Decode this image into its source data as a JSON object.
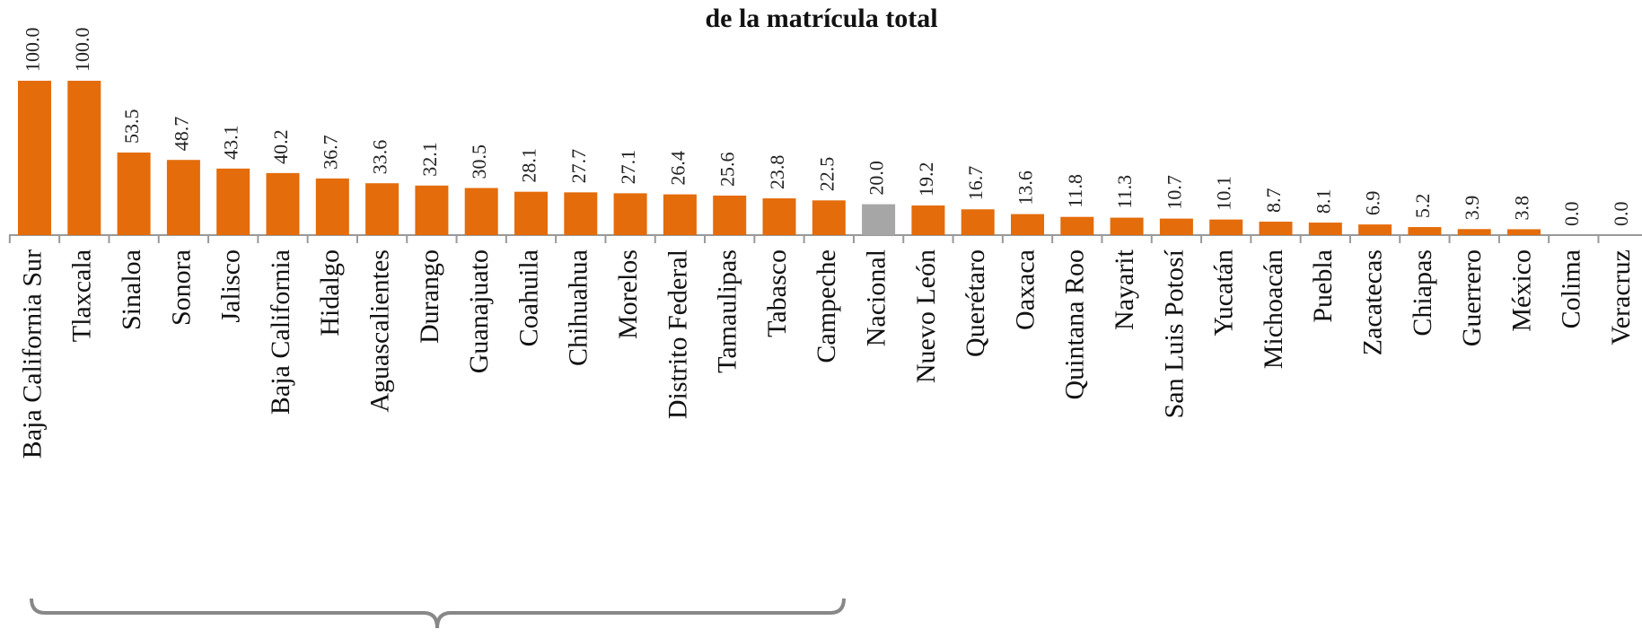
{
  "chart_data": {
    "type": "bar",
    "title": "de la matrícula total",
    "categories": [
      "Baja California Sur",
      "Tlaxcala",
      "Sinaloa",
      "Sonora",
      "Jalisco",
      "Baja California",
      "Hidalgo",
      "Aguascalientes",
      "Durango",
      "Guanajuato",
      "Coahuila",
      "Chihuahua",
      "Morelos",
      "Distrito Federal",
      "Tamaulipas",
      "Tabasco",
      "Campeche",
      "Nacional",
      "Nuevo León",
      "Querétaro",
      "Oaxaca",
      "Quintana Roo",
      "Nayarit",
      "San Luis Potosí",
      "Yucatán",
      "Michoacán",
      "Puebla",
      "Zacatecas",
      "Chiapas",
      "Guerrero",
      "México",
      "Colima",
      "Veracruz"
    ],
    "values": [
      100,
      100,
      53.5,
      48.7,
      43.1,
      40.2,
      36.7,
      33.6,
      32.1,
      30.5,
      28.1,
      27.7,
      27.1,
      26.4,
      25.6,
      23.8,
      22.5,
      20,
      19.2,
      16.7,
      13.6,
      11.8,
      11.3,
      10.7,
      10.1,
      8.7,
      8.1,
      6.9,
      5.2,
      3.9,
      3.8,
      0,
      0
    ],
    "value_labels": [
      "100.0",
      "100.0",
      "53.5",
      "48.7",
      "43.1",
      "40.2",
      "36.7",
      "33.6",
      "32.1",
      "30.5",
      "28.1",
      "27.7",
      "27.1",
      "26.4",
      "25.6",
      "23.8",
      "22.5",
      "20.0",
      "19.2",
      "16.7",
      "13.6",
      "11.8",
      "11.3",
      "10.7",
      "10.1",
      "8.7",
      "8.1",
      "6.9",
      "5.2",
      "3.9",
      "3.8",
      "0.0",
      "0.0"
    ],
    "colors": [
      "#e46c0a",
      "#e46c0a",
      "#e46c0a",
      "#e46c0a",
      "#e46c0a",
      "#e46c0a",
      "#e46c0a",
      "#e46c0a",
      "#e46c0a",
      "#e46c0a",
      "#e46c0a",
      "#e46c0a",
      "#e46c0a",
      "#e46c0a",
      "#e46c0a",
      "#e46c0a",
      "#e46c0a",
      "#a6a6a6",
      "#e46c0a",
      "#e46c0a",
      "#e46c0a",
      "#e46c0a",
      "#e46c0a",
      "#e46c0a",
      "#e46c0a",
      "#e46c0a",
      "#e46c0a",
      "#e46c0a",
      "#e46c0a",
      "#e46c0a",
      "#e46c0a",
      "#e46c0a",
      "#e46c0a"
    ],
    "ylim": [
      0,
      100
    ]
  }
}
